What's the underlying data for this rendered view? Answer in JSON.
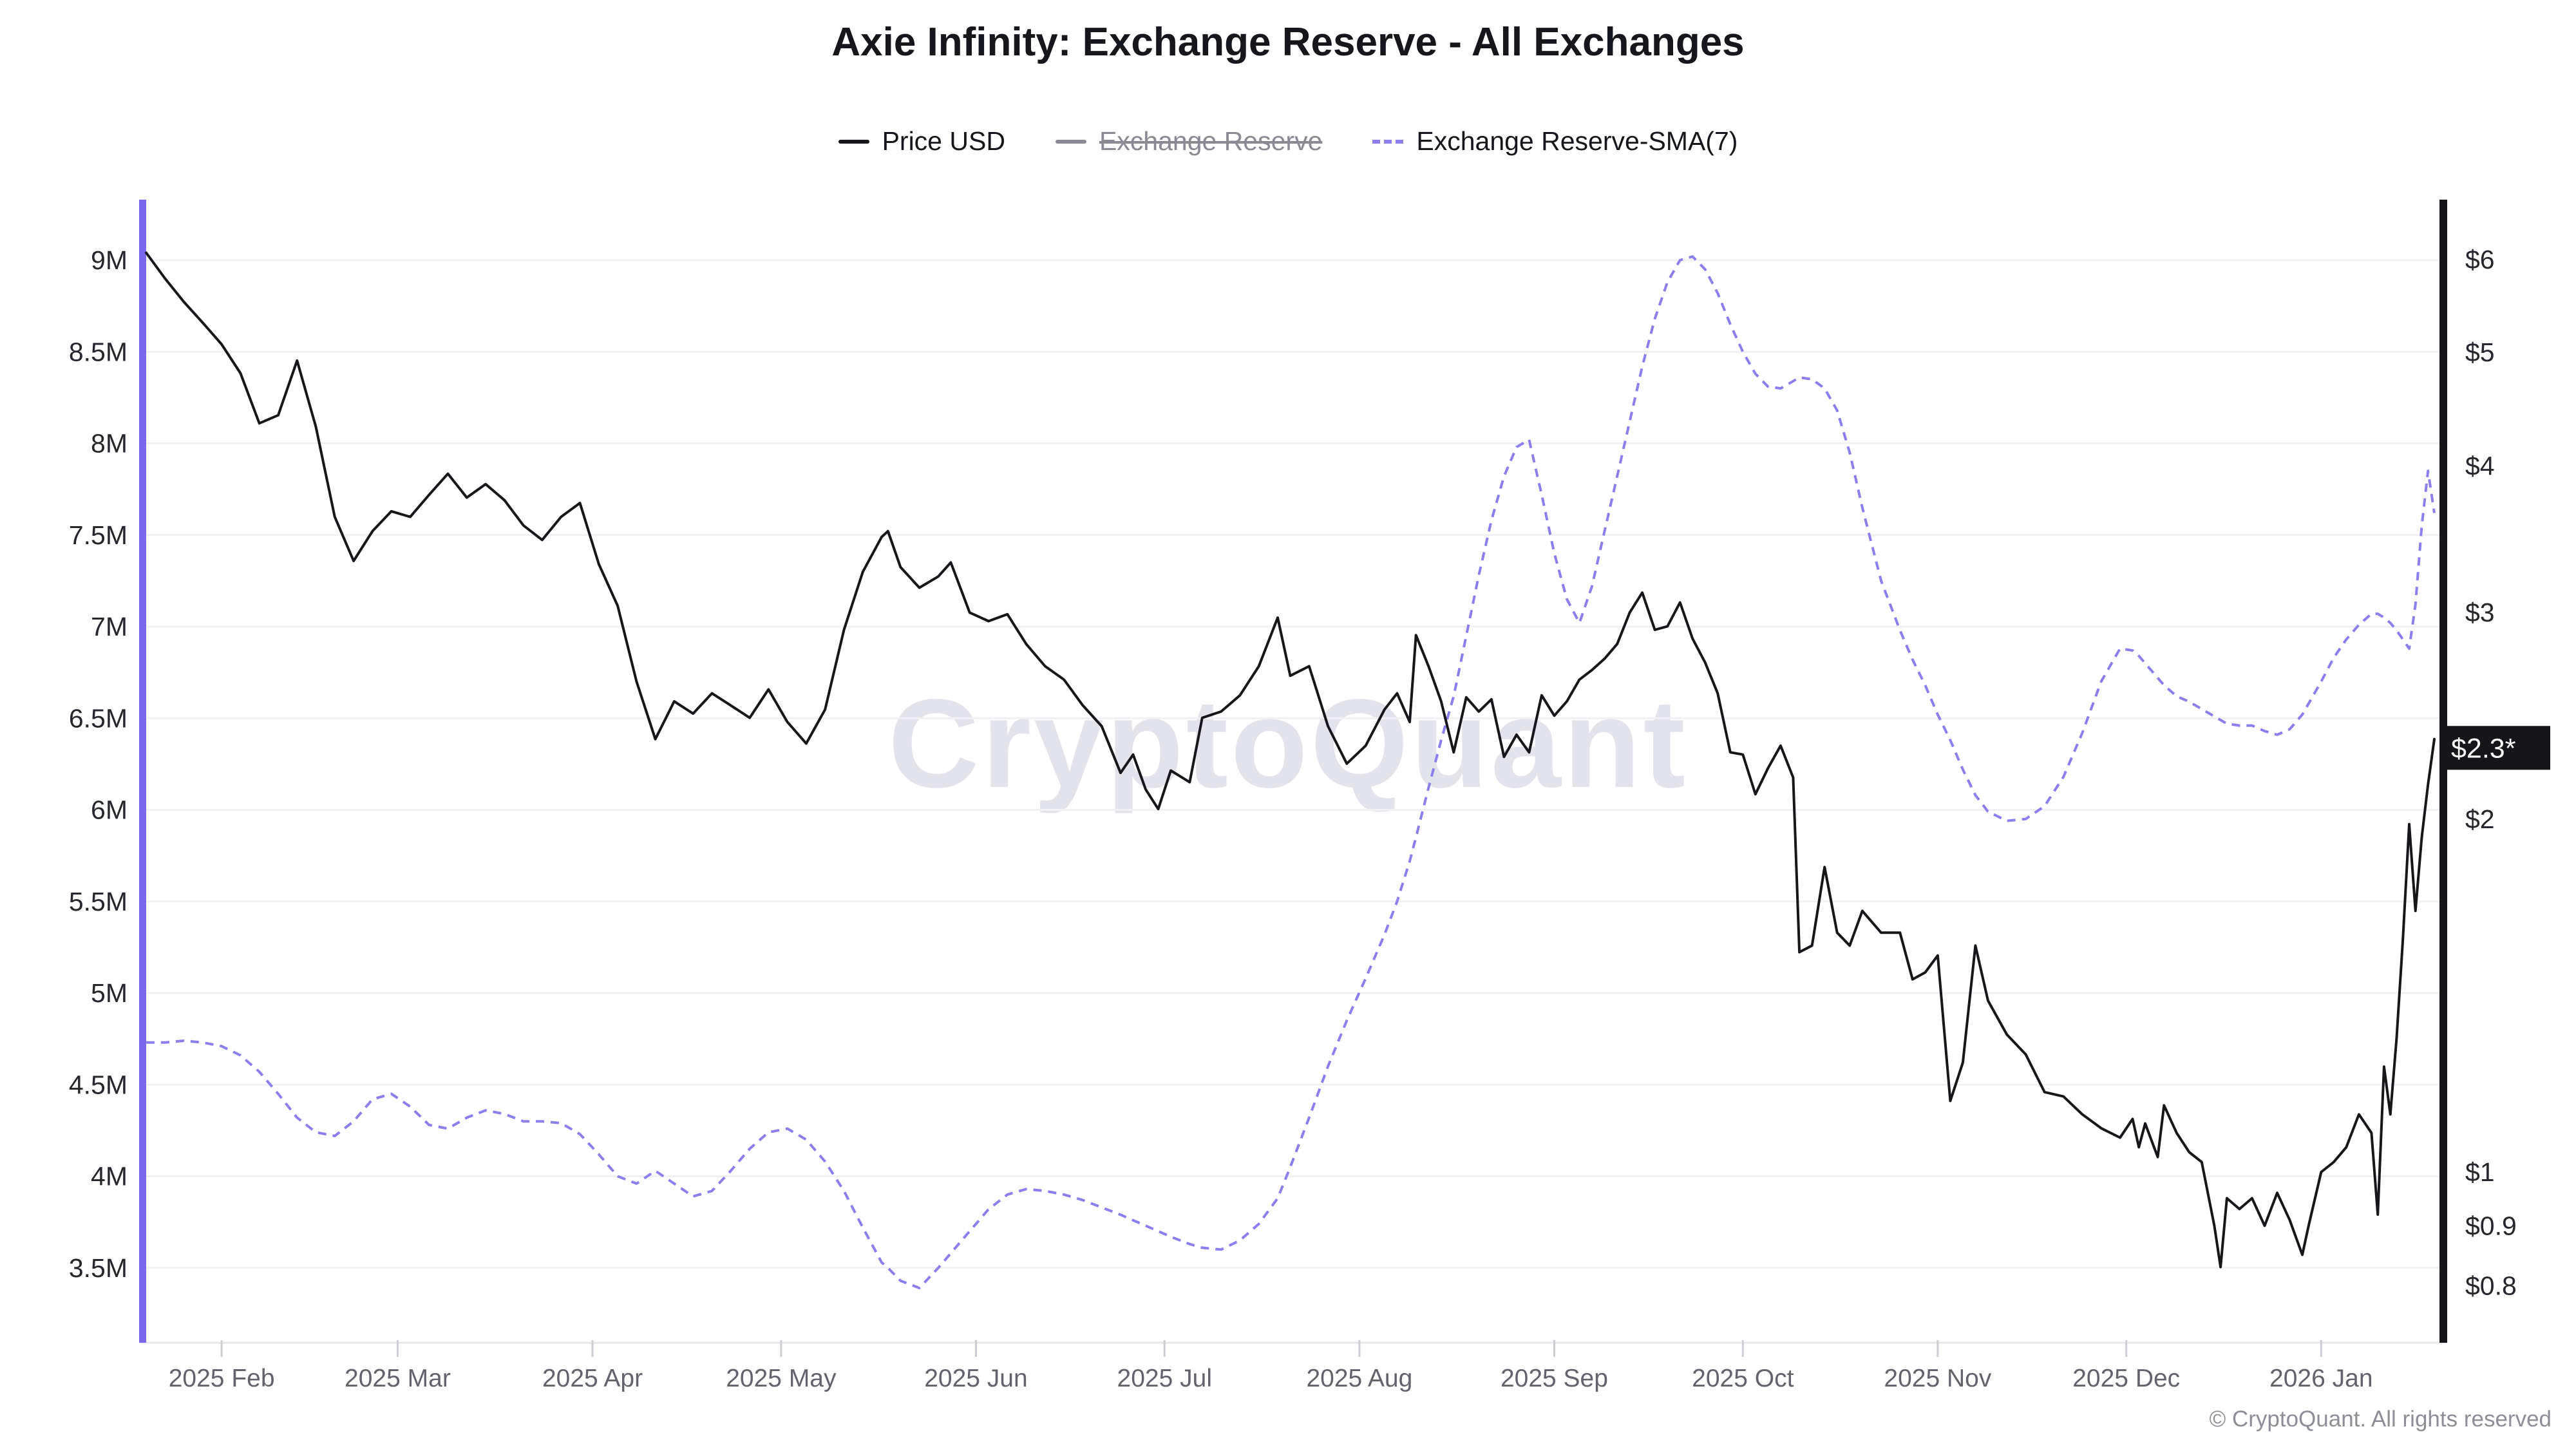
{
  "title": "Axie Infinity: Exchange Reserve - All Exchanges",
  "legend": [
    {
      "label": "Price USD",
      "color": "#17171b",
      "style": "solid",
      "enabled": true
    },
    {
      "label": "Exchange Reserve",
      "color": "#8a8a94",
      "style": "solid",
      "enabled": false
    },
    {
      "label": "Exchange Reserve-SMA(7)",
      "color": "#8b7fee",
      "style": "dashed",
      "enabled": true
    }
  ],
  "watermark": "CryptoQuant",
  "copyright": "© CryptoQuant. All rights reserved",
  "current_price_badge": "$2.3*",
  "chart_data": {
    "type": "line",
    "title": "Axie Infinity: Exchange Reserve - All Exchanges",
    "grid": true,
    "legend_position": "top",
    "x_axis": {
      "type": "time",
      "range": [
        "2025-01-20",
        "2026-01-19"
      ],
      "month_ticks": [
        {
          "label": "2025 Feb",
          "date": "2025-02-01"
        },
        {
          "label": "2025 Mar",
          "date": "2025-03-01"
        },
        {
          "label": "2025 Apr",
          "date": "2025-04-01"
        },
        {
          "label": "2025 May",
          "date": "2025-05-01"
        },
        {
          "label": "2025 Jun",
          "date": "2025-06-01"
        },
        {
          "label": "2025 Jul",
          "date": "2025-07-01"
        },
        {
          "label": "2025 Aug",
          "date": "2025-08-01"
        },
        {
          "label": "2025 Sep",
          "date": "2025-09-01"
        },
        {
          "label": "2025 Oct",
          "date": "2025-10-01"
        },
        {
          "label": "2025 Nov",
          "date": "2025-11-01"
        },
        {
          "label": "2025 Dec",
          "date": "2025-12-01"
        },
        {
          "label": "2026 Jan",
          "date": "2026-01-01"
        }
      ]
    },
    "left_axis": {
      "title": "Exchange Reserve",
      "unit": "M",
      "scale": "linear",
      "tick_labels": [
        "9M",
        "8.5M",
        "8M",
        "7.5M",
        "7M",
        "6.5M",
        "6M",
        "5.5M",
        "5M",
        "4.5M",
        "4M",
        "3.5M"
      ],
      "tick_values": [
        9,
        8.5,
        8,
        7.5,
        7,
        6.5,
        6,
        5.5,
        5,
        4.5,
        4,
        3.5
      ],
      "axis_color": "#7b68ee"
    },
    "right_axis": {
      "title": "Price USD",
      "scale": "log",
      "tick_labels": [
        "$6",
        "$5",
        "$4",
        "$3",
        "$2",
        "$1",
        "$0.9",
        "$0.8"
      ],
      "tick_values": [
        6,
        5,
        4,
        3,
        2,
        1,
        0.9,
        0.8
      ],
      "axis_color": "#15151a"
    },
    "current_price_value": 2.3,
    "dates": [
      "2025-01-20",
      "2025-01-23",
      "2025-01-26",
      "2025-01-29",
      "2025-02-01",
      "2025-02-04",
      "2025-02-07",
      "2025-02-10",
      "2025-02-13",
      "2025-02-16",
      "2025-02-19",
      "2025-02-22",
      "2025-02-25",
      "2025-02-28",
      "2025-03-03",
      "2025-03-06",
      "2025-03-09",
      "2025-03-12",
      "2025-03-15",
      "2025-03-18",
      "2025-03-21",
      "2025-03-24",
      "2025-03-27",
      "2025-03-30",
      "2025-04-02",
      "2025-04-05",
      "2025-04-08",
      "2025-04-11",
      "2025-04-14",
      "2025-04-17",
      "2025-04-20",
      "2025-04-23",
      "2025-04-26",
      "2025-04-29",
      "2025-05-02",
      "2025-05-05",
      "2025-05-08",
      "2025-05-11",
      "2025-05-14",
      "2025-05-17",
      "2025-05-18",
      "2025-05-20",
      "2025-05-23",
      "2025-05-26",
      "2025-05-28",
      "2025-05-31",
      "2025-06-03",
      "2025-06-06",
      "2025-06-09",
      "2025-06-12",
      "2025-06-15",
      "2025-06-18",
      "2025-06-21",
      "2025-06-24",
      "2025-06-26",
      "2025-06-28",
      "2025-06-30",
      "2025-07-02",
      "2025-07-05",
      "2025-07-07",
      "2025-07-10",
      "2025-07-13",
      "2025-07-16",
      "2025-07-19",
      "2025-07-21",
      "2025-07-24",
      "2025-07-27",
      "2025-07-30",
      "2025-08-02",
      "2025-08-05",
      "2025-08-07",
      "2025-08-09",
      "2025-08-10",
      "2025-08-12",
      "2025-08-14",
      "2025-08-16",
      "2025-08-18",
      "2025-08-20",
      "2025-08-22",
      "2025-08-24",
      "2025-08-26",
      "2025-08-28",
      "2025-08-30",
      "2025-09-01",
      "2025-09-03",
      "2025-09-05",
      "2025-09-07",
      "2025-09-09",
      "2025-09-11",
      "2025-09-13",
      "2025-09-15",
      "2025-09-17",
      "2025-09-19",
      "2025-09-21",
      "2025-09-23",
      "2025-09-25",
      "2025-09-27",
      "2025-09-29",
      "2025-10-01",
      "2025-10-03",
      "2025-10-05",
      "2025-10-07",
      "2025-10-09",
      "2025-10-10",
      "2025-10-12",
      "2025-10-14",
      "2025-10-16",
      "2025-10-18",
      "2025-10-20",
      "2025-10-23",
      "2025-10-26",
      "2025-10-28",
      "2025-10-30",
      "2025-11-01",
      "2025-11-03",
      "2025-11-05",
      "2025-11-07",
      "2025-11-09",
      "2025-11-12",
      "2025-11-15",
      "2025-11-18",
      "2025-11-21",
      "2025-11-24",
      "2025-11-27",
      "2025-11-30",
      "2025-12-02",
      "2025-12-03",
      "2025-12-04",
      "2025-12-06",
      "2025-12-07",
      "2025-12-09",
      "2025-12-11",
      "2025-12-13",
      "2025-12-15",
      "2025-12-16",
      "2025-12-17",
      "2025-12-19",
      "2025-12-21",
      "2025-12-23",
      "2025-12-25",
      "2025-12-27",
      "2025-12-29",
      "2025-12-30",
      "2026-01-01",
      "2026-01-03",
      "2026-01-05",
      "2026-01-07",
      "2026-01-09",
      "2026-01-10",
      "2026-01-11",
      "2026-01-12",
      "2026-01-13",
      "2026-01-14",
      "2026-01-15",
      "2026-01-16",
      "2026-01-17",
      "2026-01-18",
      "2026-01-19"
    ],
    "series": [
      {
        "name": "Price USD",
        "axis": "right",
        "color": "#17171b",
        "line_style": "solid",
        "values": [
          6.08,
          5.78,
          5.52,
          5.3,
          5.08,
          4.8,
          4.35,
          4.42,
          4.92,
          4.32,
          3.62,
          3.32,
          3.52,
          3.66,
          3.62,
          3.78,
          3.94,
          3.76,
          3.86,
          3.74,
          3.56,
          3.46,
          3.62,
          3.72,
          3.3,
          3.04,
          2.62,
          2.34,
          2.52,
          2.46,
          2.56,
          2.5,
          2.44,
          2.58,
          2.42,
          2.32,
          2.48,
          2.9,
          3.25,
          3.48,
          3.52,
          3.28,
          3.15,
          3.22,
          3.31,
          3.0,
          2.95,
          2.99,
          2.82,
          2.7,
          2.63,
          2.5,
          2.4,
          2.19,
          2.27,
          2.12,
          2.04,
          2.2,
          2.15,
          2.44,
          2.47,
          2.55,
          2.7,
          2.97,
          2.65,
          2.7,
          2.4,
          2.23,
          2.31,
          2.48,
          2.56,
          2.42,
          2.87,
          2.7,
          2.52,
          2.28,
          2.54,
          2.47,
          2.53,
          2.26,
          2.36,
          2.28,
          2.55,
          2.45,
          2.52,
          2.63,
          2.68,
          2.74,
          2.82,
          3.0,
          3.12,
          2.9,
          2.92,
          3.06,
          2.85,
          2.72,
          2.56,
          2.28,
          2.27,
          2.1,
          2.21,
          2.31,
          2.17,
          1.54,
          1.56,
          1.82,
          1.6,
          1.56,
          1.67,
          1.6,
          1.6,
          1.46,
          1.48,
          1.53,
          1.15,
          1.24,
          1.56,
          1.4,
          1.31,
          1.26,
          1.17,
          1.16,
          1.12,
          1.09,
          1.07,
          1.11,
          1.05,
          1.1,
          1.03,
          1.14,
          1.08,
          1.04,
          1.02,
          0.9,
          0.83,
          0.95,
          0.93,
          0.95,
          0.9,
          0.96,
          0.91,
          0.85,
          0.9,
          1.0,
          1.02,
          1.05,
          1.12,
          1.08,
          0.92,
          1.23,
          1.12,
          1.3,
          1.58,
          1.98,
          1.67,
          1.93,
          2.14,
          2.34
        ]
      },
      {
        "name": "Exchange Reserve-SMA(7)",
        "axis": "left",
        "color": "#8b7fee",
        "line_style": "dashed",
        "unit": "millions",
        "values": [
          4.73,
          4.73,
          4.74,
          4.73,
          4.71,
          4.66,
          4.57,
          4.45,
          4.32,
          4.24,
          4.22,
          4.3,
          4.42,
          4.45,
          4.38,
          4.28,
          4.26,
          4.32,
          4.36,
          4.34,
          4.3,
          4.3,
          4.29,
          4.23,
          4.12,
          4.0,
          3.96,
          4.03,
          3.96,
          3.89,
          3.92,
          4.03,
          4.15,
          4.24,
          4.26,
          4.2,
          4.08,
          3.92,
          3.72,
          3.53,
          3.5,
          3.43,
          3.39,
          3.5,
          3.58,
          3.7,
          3.82,
          3.9,
          3.93,
          3.92,
          3.9,
          3.87,
          3.83,
          3.79,
          3.76,
          3.73,
          3.7,
          3.67,
          3.63,
          3.61,
          3.6,
          3.65,
          3.74,
          3.88,
          4.05,
          4.32,
          4.6,
          4.85,
          5.08,
          5.32,
          5.5,
          5.72,
          5.85,
          6.12,
          6.38,
          6.62,
          6.95,
          7.28,
          7.58,
          7.82,
          7.98,
          8.02,
          7.72,
          7.4,
          7.15,
          7.02,
          7.22,
          7.52,
          7.82,
          8.12,
          8.42,
          8.68,
          8.88,
          9.0,
          9.02,
          8.95,
          8.82,
          8.65,
          8.5,
          8.38,
          8.31,
          8.3,
          8.34,
          8.36,
          8.35,
          8.3,
          8.18,
          7.95,
          7.65,
          7.25,
          6.98,
          6.82,
          6.68,
          6.52,
          6.38,
          6.22,
          6.08,
          5.99,
          5.94,
          5.95,
          6.02,
          6.18,
          6.42,
          6.7,
          6.88,
          6.87,
          6.84,
          6.8,
          6.72,
          6.68,
          6.62,
          6.59,
          6.55,
          6.51,
          6.49,
          6.47,
          6.46,
          6.46,
          6.43,
          6.41,
          6.44,
          6.52,
          6.58,
          6.7,
          6.83,
          6.93,
          7.01,
          7.07,
          7.07,
          7.05,
          7.02,
          6.98,
          6.93,
          6.88,
          7.12,
          7.55,
          7.85,
          7.62
        ]
      },
      {
        "name": "Exchange Reserve",
        "axis": "left",
        "color": "#8a8a94",
        "line_style": "solid",
        "enabled": false,
        "values": []
      }
    ]
  }
}
